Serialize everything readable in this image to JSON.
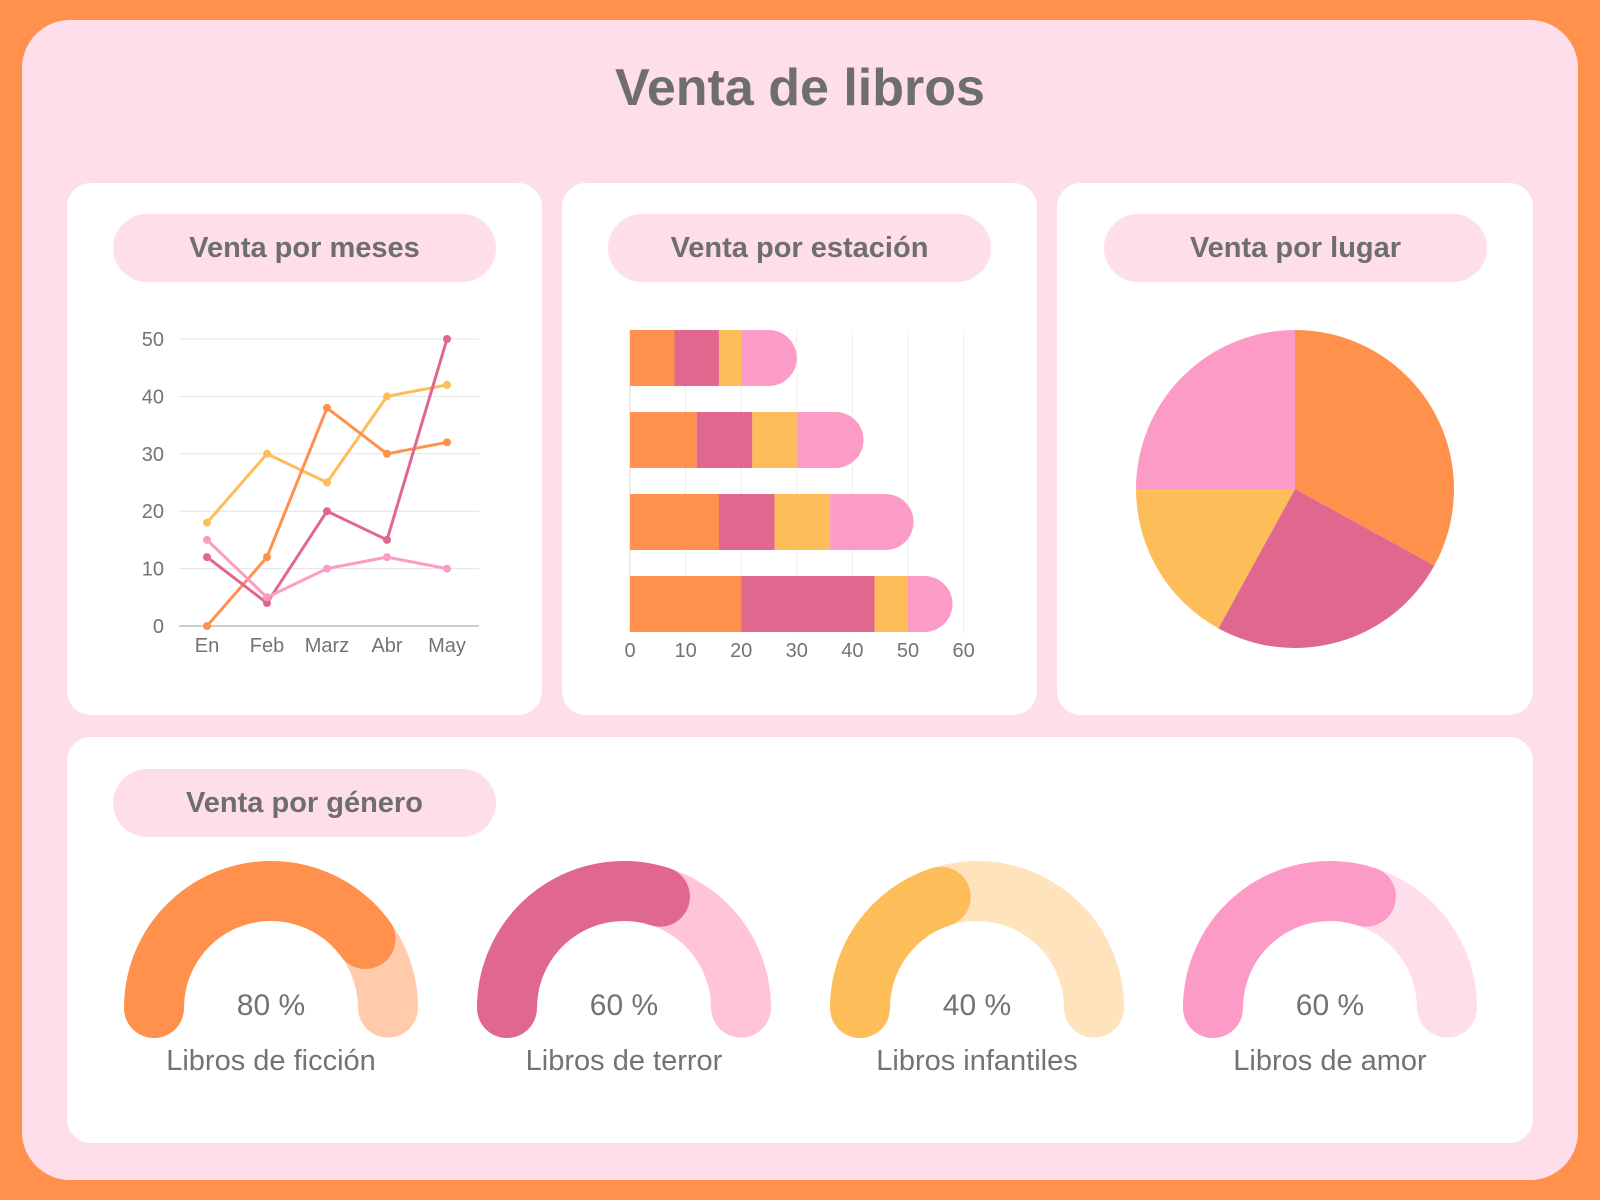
{
  "title": "Venta de libros",
  "colors": {
    "orange": "#FF914D",
    "magenta": "#E0678E",
    "yellow": "#FDBD59",
    "pink": "#FC9BC5",
    "background": "#FF914D",
    "panel": "#FFDEEB"
  },
  "panels": {
    "months": "Venta por meses",
    "season": "Venta por estación",
    "place": "Venta por lugar",
    "genre": "Venta por género"
  },
  "chart_data": [
    {
      "type": "line",
      "title": "Venta por meses",
      "categories": [
        "En",
        "Feb",
        "Marz",
        "Abr",
        "May"
      ],
      "ylim": [
        0,
        50
      ],
      "yticks": [
        0,
        10,
        20,
        30,
        40,
        50
      ],
      "grid": true,
      "series": [
        {
          "color": "#FDBD59",
          "values": [
            18,
            30,
            25,
            40,
            42
          ]
        },
        {
          "color": "#FF914D",
          "values": [
            0,
            12,
            38,
            30,
            32
          ]
        },
        {
          "color": "#E0678E",
          "values": [
            12,
            4,
            20,
            15,
            50
          ]
        },
        {
          "color": "#FC9BC5",
          "values": [
            15,
            5,
            10,
            12,
            10
          ]
        }
      ]
    },
    {
      "type": "bar",
      "orientation": "horizontal",
      "stacked": true,
      "title": "Venta por estación",
      "xlim": [
        0,
        60
      ],
      "xticks": [
        0,
        10,
        20,
        30,
        40,
        50,
        60
      ],
      "grid": true,
      "series_colors": [
        "#FF914D",
        "#E0678E",
        "#FDBD59",
        "#FC9BC5"
      ],
      "bars": [
        [
          8,
          8,
          4,
          10
        ],
        [
          12,
          10,
          8,
          12
        ],
        [
          16,
          10,
          10,
          15
        ],
        [
          20,
          24,
          6,
          8
        ]
      ]
    },
    {
      "type": "pie",
      "title": "Venta por lugar",
      "slices": [
        {
          "color": "#FF914D",
          "value": 33
        },
        {
          "color": "#E0678E",
          "value": 25
        },
        {
          "color": "#FDBD59",
          "value": 17
        },
        {
          "color": "#FC9BC5",
          "value": 25
        }
      ]
    }
  ],
  "gauges": [
    {
      "label": "80 %",
      "name": "Libros de ficción",
      "value": 80,
      "color": "#FF914D",
      "track": "#FFCBAA"
    },
    {
      "label": "60 %",
      "name": "Libros de terror",
      "value": 60,
      "color": "#E0678E",
      "track": "#FFC4DA"
    },
    {
      "label": "40 %",
      "name": "Libros infantiles",
      "value": 40,
      "color": "#FDBD59",
      "track": "#FFE3BC"
    },
    {
      "label": "60 %",
      "name": "Libros de amor",
      "value": 60,
      "color": "#FC9BC5",
      "track": "#FFDEEB"
    }
  ]
}
